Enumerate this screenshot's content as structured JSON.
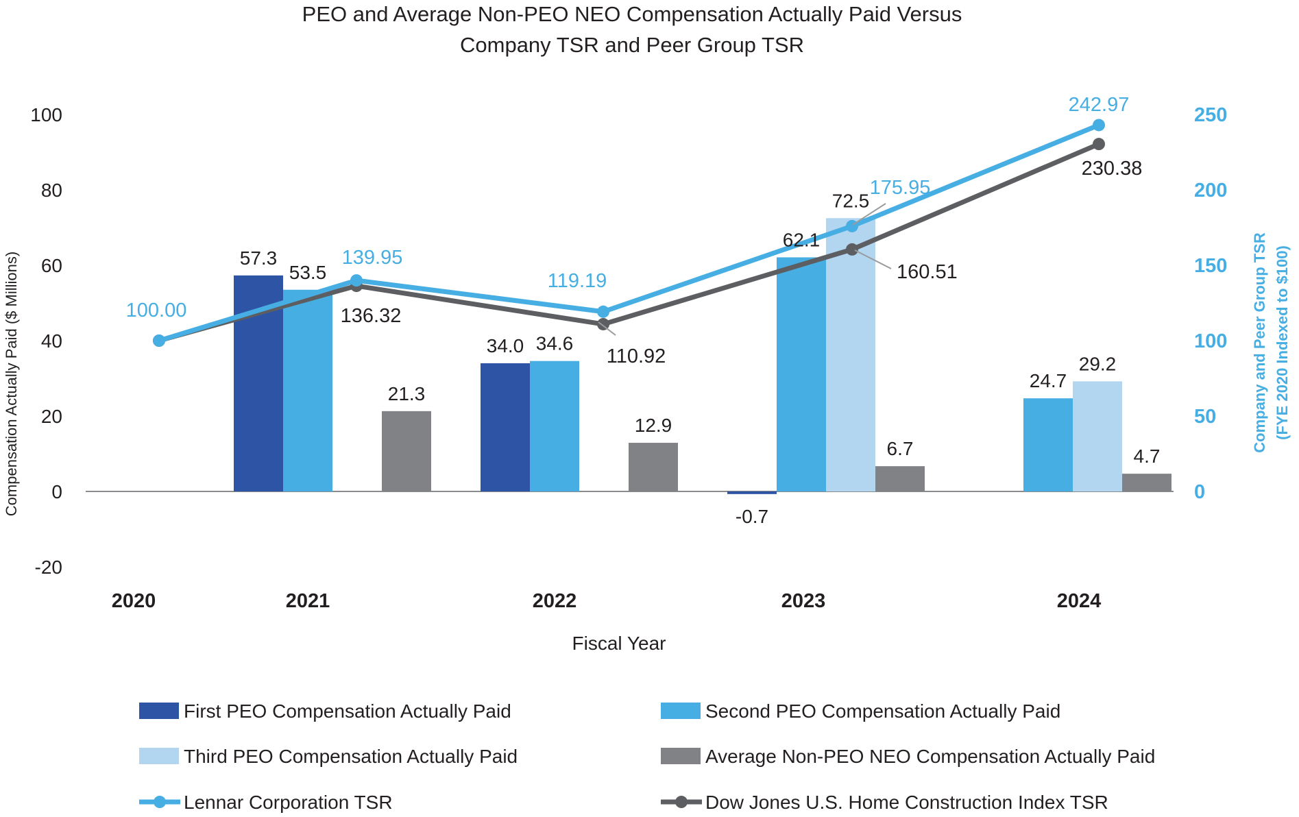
{
  "chart_data": {
    "type": "bar",
    "title_line1": "PEO and Average Non-PEO NEO Compensation Actually Paid Versus",
    "title_line2": "Company TSR and Peer Group TSR",
    "xlabel": "Fiscal Year",
    "ylabel_left": "Compensation Actually Paid ($ Millions)",
    "ylabel_right_line1": "Company and Peer Group TSR",
    "ylabel_right_line2": "(FYE 2020 Indexed to $100)",
    "categories": [
      "2020",
      "2021",
      "2022",
      "2023",
      "2024"
    ],
    "y_left_range": [
      -20,
      100
    ],
    "y_left_ticks": [
      "-20",
      "0",
      "20",
      "40",
      "60",
      "80",
      "100"
    ],
    "y_right_range": [
      -50,
      250
    ],
    "y_right_ticks": [
      "0",
      "50",
      "100",
      "150",
      "200",
      "250"
    ],
    "bar_series": [
      {
        "name": "First PEO Compensation Actually Paid",
        "color": "#2e55a5",
        "values": [
          null,
          57.3,
          34.0,
          -0.7,
          null
        ],
        "labels": [
          null,
          "57.3",
          "34.0",
          "-0.7",
          null
        ]
      },
      {
        "name": "Second PEO Compensation Actually Paid",
        "color": "#47aee3",
        "values": [
          null,
          53.5,
          34.6,
          62.1,
          24.7
        ],
        "labels": [
          null,
          "53.5",
          "34.6",
          "62.1",
          "24.7"
        ]
      },
      {
        "name": "Third PEO Compensation Actually Paid",
        "color": "#b2d5f0",
        "values": [
          null,
          null,
          null,
          72.5,
          29.2
        ],
        "labels": [
          null,
          null,
          null,
          "72.5",
          "29.2"
        ]
      },
      {
        "name": "Average Non-PEO NEO Compensation Actually Paid",
        "color": "#818285",
        "values": [
          null,
          21.3,
          12.9,
          6.7,
          4.7
        ],
        "labels": [
          null,
          "21.3",
          "12.9",
          "6.7",
          "4.7"
        ]
      }
    ],
    "line_series": [
      {
        "name": "Lennar Corporation TSR",
        "color": "#47aee3",
        "values": [
          100.0,
          139.95,
          119.19,
          175.95,
          242.97
        ],
        "labels": [
          "100.00",
          "139.95",
          "119.19",
          "175.95",
          "242.97"
        ]
      },
      {
        "name": "Dow Jones U.S. Home Construction Index TSR",
        "color": "#5d5e61",
        "values": [
          100.0,
          136.32,
          110.92,
          160.51,
          230.38
        ],
        "labels": [
          null,
          "136.32",
          "110.92",
          "160.51",
          "230.38"
        ]
      }
    ],
    "legend": [
      {
        "label": "First PEO Compensation Actually Paid",
        "kind": "bar",
        "color": "#2e55a5"
      },
      {
        "label": "Second PEO Compensation Actually Paid",
        "kind": "bar",
        "color": "#47aee3"
      },
      {
        "label": "Third PEO Compensation Actually Paid",
        "kind": "bar",
        "color": "#b2d5f0"
      },
      {
        "label": "Average Non-PEO NEO Compensation Actually Paid",
        "kind": "bar",
        "color": "#818285"
      },
      {
        "label": "Lennar Corporation TSR",
        "kind": "line",
        "color": "#47aee3"
      },
      {
        "label": "Dow Jones U.S. Home Construction Index TSR",
        "kind": "line",
        "color": "#5d5e61"
      }
    ],
    "legend_position": "bottom",
    "grid": false,
    "colors": {
      "axis_text": "#231f20",
      "right_axis": "#47aee3",
      "baseline": "#8a8b8e"
    }
  }
}
